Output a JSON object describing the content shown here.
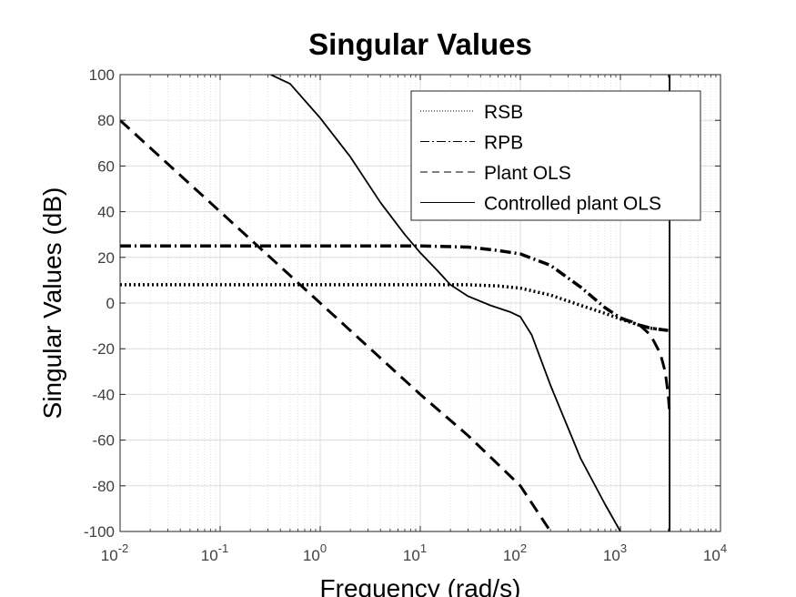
{
  "chart_data": {
    "type": "line",
    "title": "Singular Values",
    "xlabel": "Frequency (rad/s)",
    "ylabel": "Singular Values (dB)",
    "xscale": "log",
    "xlim": [
      0.01,
      10000
    ],
    "ylim": [
      -100,
      100
    ],
    "x_ticks": [
      0.01,
      0.1,
      1,
      10,
      100,
      1000,
      10000
    ],
    "x_tick_labels": [
      {
        "base": "10",
        "exp": "-2"
      },
      {
        "base": "10",
        "exp": "-1"
      },
      {
        "base": "10",
        "exp": "0"
      },
      {
        "base": "10",
        "exp": "1"
      },
      {
        "base": "10",
        "exp": "2"
      },
      {
        "base": "10",
        "exp": "3"
      },
      {
        "base": "10",
        "exp": "4"
      }
    ],
    "y_ticks": [
      100,
      80,
      60,
      40,
      20,
      0,
      -20,
      -40,
      -60,
      -80,
      -100
    ],
    "y_tick_labels": [
      "100",
      "80",
      "60",
      "40",
      "20",
      "0",
      "-20",
      "-40",
      "-60",
      "-80",
      "-100"
    ],
    "grid": true,
    "minor_grid": true,
    "legend_position": "top-right",
    "series": [
      {
        "name": "RSB",
        "line_style": "dotted",
        "color": "#000000",
        "points": [
          [
            0.01,
            8
          ],
          [
            1,
            8
          ],
          [
            10,
            8
          ],
          [
            30,
            8
          ],
          [
            60,
            7.5
          ],
          [
            100,
            6.5
          ],
          [
            200,
            3.5
          ],
          [
            400,
            -1
          ],
          [
            700,
            -4.5
          ],
          [
            1000,
            -7
          ],
          [
            1500,
            -9.5
          ],
          [
            2000,
            -11
          ],
          [
            3000,
            -12
          ]
        ]
      },
      {
        "name": "RPB",
        "line_style": "dash-dot",
        "color": "#000000",
        "points": [
          [
            0.01,
            25
          ],
          [
            1,
            25
          ],
          [
            10,
            25
          ],
          [
            30,
            24.5
          ],
          [
            60,
            23
          ],
          [
            100,
            21.5
          ],
          [
            200,
            16.5
          ],
          [
            400,
            7
          ],
          [
            700,
            -2
          ],
          [
            1000,
            -6.5
          ],
          [
            1500,
            -9.5
          ],
          [
            2000,
            -11
          ],
          [
            3000,
            -12
          ]
        ]
      },
      {
        "name": "Plant OLS",
        "line_style": "dashed",
        "color": "#000000",
        "points": [
          [
            0.01,
            80
          ],
          [
            0.1,
            40
          ],
          [
            1,
            0
          ],
          [
            10,
            -40
          ],
          [
            30,
            -58
          ],
          [
            100,
            -80
          ],
          [
            200,
            -100
          ]
        ]
      },
      {
        "name": "Controlled plant OLS",
        "line_style": "solid",
        "color": "#000000",
        "points": [
          [
            0.32,
            100
          ],
          [
            0.5,
            96
          ],
          [
            1,
            81
          ],
          [
            2,
            64
          ],
          [
            4,
            44
          ],
          [
            7,
            30
          ],
          [
            10,
            22
          ],
          [
            15,
            14
          ],
          [
            20,
            8
          ],
          [
            30,
            3
          ],
          [
            50,
            -1
          ],
          [
            80,
            -4
          ],
          [
            100,
            -6
          ],
          [
            130,
            -14
          ],
          [
            200,
            -36
          ],
          [
            400,
            -68
          ],
          [
            700,
            -88
          ],
          [
            1000,
            -100
          ]
        ]
      },
      {
        "name": "",
        "line_style": "solid",
        "color": "#000000",
        "points": [
          [
            3100,
            100
          ],
          [
            3100,
            -100
          ]
        ]
      },
      {
        "name": "",
        "line_style": "dashed",
        "color": "#000000",
        "points": [
          [
            1000,
            -6.5
          ],
          [
            1500,
            -9
          ],
          [
            2000,
            -14
          ],
          [
            2500,
            -22
          ],
          [
            2800,
            -30
          ],
          [
            3000,
            -40
          ],
          [
            3100,
            -48
          ]
        ]
      }
    ]
  }
}
